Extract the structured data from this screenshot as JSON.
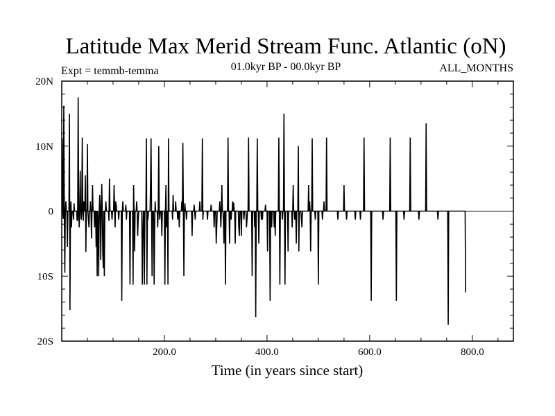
{
  "chart_data": {
    "type": "line",
    "title": "Latitude Max Merid Stream Func. Atlantic (oN)",
    "experiment_label": "Expt = temmb-temma",
    "period_label": "01.0kyr BP - 00.0kyr BP",
    "season_label": "ALL_MONTHS",
    "xlabel": "Time (in years since start)",
    "ylabel": "",
    "xlim": [
      0,
      880
    ],
    "ylim": [
      -20,
      20
    ],
    "x_ticks": [
      {
        "value": 200,
        "label": "200.0"
      },
      {
        "value": 400,
        "label": "400.0"
      },
      {
        "value": 600,
        "label": "600.0"
      },
      {
        "value": 800,
        "label": "800.0"
      }
    ],
    "y_ticks": [
      {
        "value": 20,
        "label": "20N"
      },
      {
        "value": 10,
        "label": "10N"
      },
      {
        "value": 0,
        "label": "0"
      },
      {
        "value": -10,
        "label": "10S"
      },
      {
        "value": -20,
        "label": "20S"
      }
    ],
    "series": [
      {
        "name": "latitude_max_stream_function",
        "color": "#000000",
        "x_start": 1,
        "x_step": 1,
        "values": [
          11.2,
          0,
          -1.2,
          16.2,
          0,
          -9.5,
          0,
          1.5,
          0,
          0,
          -5.5,
          0,
          0,
          0,
          15,
          -15.2,
          0,
          1.5,
          -2.5,
          0,
          0,
          0,
          -1.3,
          1.2,
          0,
          0,
          0,
          0,
          0,
          -1.5,
          -1.3,
          17.5,
          0,
          -2.5,
          0,
          6.2,
          0,
          -1.3,
          0,
          11.3,
          0,
          -1.5,
          1.5,
          0,
          0,
          5.5,
          -6.3,
          0,
          0,
          10.3,
          0,
          -1.3,
          -2.5,
          0,
          0,
          1.5,
          0,
          -4.2,
          0,
          4,
          0,
          0,
          0,
          -2.5,
          0,
          0,
          -5.5,
          0,
          -10,
          0,
          -1.5,
          -10,
          0,
          2.5,
          0,
          -7.5,
          0,
          4.2,
          0,
          -6.5,
          -8.8,
          0,
          -10,
          0,
          0,
          1.5,
          0,
          0,
          0,
          0,
          0,
          -1.5,
          5,
          0,
          0,
          0,
          0,
          -1.3,
          0,
          0,
          0,
          4,
          0,
          -2.5,
          1.5,
          1,
          0,
          0,
          0,
          0,
          -1.3,
          0,
          0,
          0,
          0,
          0,
          -13.8,
          0,
          1.5,
          0,
          0,
          0,
          0,
          0,
          1,
          -1.3,
          0,
          0,
          0,
          0,
          0,
          0,
          -11.3,
          0,
          0,
          0,
          0,
          0,
          -11.3,
          4,
          0,
          -6.2,
          0,
          0,
          0,
          1.5,
          0,
          -3.8,
          -1.3,
          0,
          0,
          0,
          0,
          0,
          0,
          0,
          -11.3,
          -5,
          0,
          0,
          -11.3,
          0,
          0,
          0,
          11.2,
          -11.3,
          0,
          -1.3,
          0,
          0,
          0,
          0,
          4,
          11.2,
          0,
          -10,
          0,
          0,
          0,
          -11.3,
          -2.5,
          1.5,
          0,
          0,
          0,
          0,
          -2.5,
          0,
          10,
          0,
          -1.3,
          0,
          0,
          0,
          -3.8,
          0,
          0,
          0,
          0,
          0,
          -11.3,
          0,
          4,
          -2.5,
          0,
          0,
          -11.3,
          11.2,
          0,
          0,
          0,
          0,
          0,
          0,
          0,
          -1.3,
          2.5,
          0,
          0,
          0,
          0,
          1.5,
          0,
          0,
          0,
          -1.3,
          0,
          0,
          -2.5,
          0,
          0,
          0,
          0,
          1.5,
          0,
          10.5,
          0,
          -10,
          0,
          1.2,
          0,
          0,
          -1.3,
          0,
          0,
          0,
          0,
          0,
          0,
          0,
          0,
          0,
          0,
          -3.8,
          0,
          0,
          0,
          1,
          0,
          -1.3,
          0,
          0,
          0,
          0,
          0,
          0,
          0,
          0,
          1.5,
          0,
          0,
          0,
          0,
          11.2,
          -1.3,
          0,
          0,
          0,
          0,
          0,
          0,
          0,
          0,
          -1.3,
          0,
          0,
          0,
          0,
          0,
          0,
          1,
          0,
          0,
          0,
          0,
          0,
          -2.5,
          0,
          0,
          0,
          -5,
          -2.5,
          0,
          0,
          0,
          0,
          0,
          1.5,
          0,
          -2.5,
          0,
          4,
          0,
          0,
          -1.3,
          -5,
          0,
          0,
          -11.3,
          0,
          0,
          0,
          0,
          11.3,
          0,
          0,
          -5,
          0,
          0,
          -1.3,
          0,
          0,
          1.5,
          0,
          1.3,
          0,
          0,
          -5,
          0,
          0,
          0,
          0,
          0,
          0,
          -2.5,
          -3.8,
          0,
          0,
          0,
          -3.8,
          0,
          0,
          0,
          0,
          -1.3,
          0,
          0,
          0,
          0,
          -2.5,
          -1.3,
          0,
          0,
          11.3,
          0,
          0,
          0,
          0,
          0,
          0,
          -10,
          0,
          0,
          0,
          0,
          -2.5,
          0,
          -16.3,
          0,
          0,
          11.2,
          0,
          0,
          -5,
          0,
          0,
          0,
          0,
          -1.3,
          0,
          -1.3,
          0,
          0,
          0,
          0,
          0,
          1,
          0,
          0,
          0,
          -6.2,
          0,
          0,
          0,
          0,
          -13.8,
          0,
          0,
          -2.5,
          0,
          0,
          0,
          0,
          -2.5,
          0,
          -3.8,
          0,
          0,
          0,
          0,
          0,
          0,
          11.3,
          0,
          -11.3,
          0,
          0,
          0,
          0,
          -1.3,
          0,
          0,
          15,
          0,
          -11.3,
          0,
          0,
          0,
          0,
          0,
          -6.2,
          0,
          0,
          0,
          0,
          0,
          0,
          0,
          -2.5,
          0,
          4,
          0,
          0,
          -1.3,
          0,
          0,
          -5,
          0,
          0,
          0,
          10,
          -6.2,
          0,
          0,
          0,
          0,
          -1.3,
          -2.5,
          0,
          0,
          0,
          0,
          0,
          0,
          0,
          0,
          0,
          0,
          0,
          0,
          4,
          0,
          1.5,
          0,
          -6.2,
          0,
          0,
          11.2,
          0,
          0,
          0,
          0,
          0,
          -1.3,
          0,
          0,
          0,
          0,
          0,
          -11.3,
          0,
          0,
          0,
          0,
          0,
          0,
          0,
          -1.3,
          0,
          0,
          1.5,
          0,
          0,
          0,
          0,
          11.3,
          0,
          0,
          0,
          0,
          0,
          0,
          0,
          0,
          0,
          0,
          0,
          0,
          0,
          0,
          0,
          0,
          0,
          0,
          0,
          0,
          0,
          -1.3,
          0,
          0,
          0,
          0,
          0,
          0,
          0,
          0,
          0,
          0,
          0,
          4,
          0,
          0,
          0,
          0,
          -1.3,
          0,
          0,
          0,
          0,
          0,
          0,
          0,
          0,
          0,
          0,
          0,
          0,
          0,
          0,
          0,
          0,
          -1.3,
          0,
          0,
          0,
          0,
          0,
          0,
          0,
          0,
          0,
          -1.3,
          0,
          0,
          0,
          0,
          0,
          0,
          11.3,
          0,
          0,
          0,
          0,
          0,
          0,
          0,
          0,
          0,
          0,
          0,
          0,
          0,
          -13.8,
          0,
          0,
          0,
          0,
          0,
          0,
          0,
          0,
          0,
          0,
          0,
          0,
          0,
          0,
          0,
          0,
          0,
          0,
          0,
          0,
          0,
          0,
          -1.3,
          0,
          0,
          0,
          0,
          0,
          0,
          0,
          0,
          0,
          0,
          0,
          0,
          0,
          11.3,
          0,
          0,
          0,
          0,
          0,
          0,
          0,
          0,
          0,
          0,
          0,
          -13.8,
          0,
          0,
          0,
          0,
          0,
          0,
          0,
          0,
          0,
          0,
          0,
          0,
          0,
          0,
          -1.3,
          0,
          0,
          0,
          0,
          0,
          0,
          0,
          0,
          0,
          0,
          0,
          11.3,
          0,
          0,
          0,
          0,
          0,
          0,
          0,
          0,
          0,
          0,
          0,
          0,
          0,
          0,
          0,
          0,
          -1.3,
          0,
          0,
          0,
          0,
          0,
          0,
          0,
          0,
          0,
          0,
          0,
          0,
          0,
          13.5,
          0,
          0,
          0,
          0,
          0,
          0,
          0,
          0,
          0,
          0,
          0,
          0,
          0,
          0,
          0,
          0,
          0,
          0,
          0,
          0,
          0,
          0,
          -1.3,
          0,
          0,
          0,
          0,
          0,
          0,
          0,
          0,
          0,
          0,
          0,
          0,
          0,
          0,
          0,
          0,
          0,
          0,
          0,
          -17.5,
          0,
          0,
          0,
          0,
          0,
          0,
          0,
          0,
          0,
          0,
          0,
          0,
          0,
          0,
          0,
          0,
          0,
          0,
          0,
          0,
          0,
          0,
          0,
          0,
          0,
          0,
          0,
          0,
          0,
          0,
          0,
          0,
          0,
          -12.5
        ]
      }
    ]
  }
}
